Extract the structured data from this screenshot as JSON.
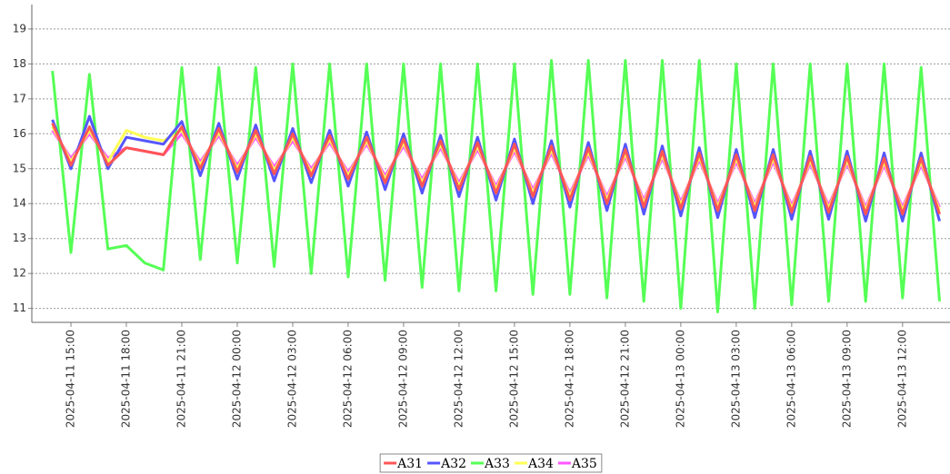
{
  "chart_data": {
    "type": "line",
    "x": [
      "2025-04-11 14:00",
      "2025-04-11 15:00",
      "2025-04-11 16:00",
      "2025-04-11 17:00",
      "2025-04-11 18:00",
      "2025-04-11 19:00",
      "2025-04-11 20:00",
      "2025-04-11 21:00",
      "2025-04-11 22:00",
      "2025-04-11 23:00",
      "2025-04-12 00:00",
      "2025-04-12 01:00",
      "2025-04-12 02:00",
      "2025-04-12 03:00",
      "2025-04-12 04:00",
      "2025-04-12 05:00",
      "2025-04-12 06:00",
      "2025-04-12 07:00",
      "2025-04-12 08:00",
      "2025-04-12 09:00",
      "2025-04-12 10:00",
      "2025-04-12 11:00",
      "2025-04-12 12:00",
      "2025-04-12 13:00",
      "2025-04-12 14:00",
      "2025-04-12 15:00",
      "2025-04-12 16:00",
      "2025-04-12 17:00",
      "2025-04-12 18:00",
      "2025-04-12 19:00",
      "2025-04-12 20:00",
      "2025-04-12 21:00",
      "2025-04-12 22:00",
      "2025-04-12 23:00",
      "2025-04-13 00:00",
      "2025-04-13 01:00",
      "2025-04-13 02:00",
      "2025-04-13 03:00",
      "2025-04-13 04:00",
      "2025-04-13 05:00",
      "2025-04-13 06:00",
      "2025-04-13 07:00",
      "2025-04-13 08:00",
      "2025-04-13 09:00",
      "2025-04-13 10:00",
      "2025-04-13 11:00",
      "2025-04-13 12:00",
      "2025-04-13 13:00",
      "2025-04-13 14:00"
    ],
    "series": [
      {
        "name": "A31",
        "color": "#ff5555",
        "values": [
          16.3,
          15.1,
          16.2,
          15.1,
          15.6,
          15.5,
          15.4,
          16.2,
          15.0,
          16.15,
          14.9,
          16.1,
          14.85,
          16.0,
          14.8,
          15.95,
          14.7,
          15.9,
          14.6,
          15.85,
          14.5,
          15.8,
          14.4,
          15.75,
          14.3,
          15.7,
          14.2,
          15.65,
          14.1,
          15.6,
          14.0,
          15.55,
          13.9,
          15.5,
          13.85,
          15.45,
          13.8,
          15.4,
          13.8,
          15.4,
          13.75,
          15.35,
          13.75,
          15.35,
          13.7,
          15.3,
          13.7,
          15.3,
          13.7
        ]
      },
      {
        "name": "A32",
        "color": "#5555ff",
        "values": [
          16.4,
          15.0,
          16.5,
          15.0,
          15.9,
          15.8,
          15.7,
          16.35,
          14.8,
          16.3,
          14.7,
          16.25,
          14.65,
          16.15,
          14.6,
          16.1,
          14.5,
          16.05,
          14.4,
          16.0,
          14.3,
          15.95,
          14.2,
          15.9,
          14.1,
          15.85,
          14.0,
          15.8,
          13.9,
          15.75,
          13.8,
          15.7,
          13.7,
          15.65,
          13.65,
          15.6,
          13.6,
          15.55,
          13.6,
          15.55,
          13.55,
          15.5,
          13.55,
          15.5,
          13.5,
          15.45,
          13.5,
          15.45,
          13.5
        ]
      },
      {
        "name": "A33",
        "color": "#55ff55",
        "values": [
          17.8,
          12.6,
          17.7,
          12.7,
          12.8,
          12.3,
          12.1,
          17.9,
          12.4,
          17.9,
          12.3,
          17.9,
          12.2,
          18.0,
          12.0,
          18.0,
          11.9,
          18.0,
          11.8,
          18.0,
          11.6,
          18.0,
          11.5,
          18.0,
          11.5,
          18.0,
          11.4,
          18.1,
          11.4,
          18.1,
          11.3,
          18.1,
          11.2,
          18.1,
          11.0,
          18.1,
          10.9,
          18.0,
          11.0,
          18.0,
          11.1,
          18.0,
          11.2,
          18.0,
          11.2,
          18.0,
          11.3,
          17.9,
          11.2
        ]
      },
      {
        "name": "A34",
        "color": "#ffff55",
        "values": [
          16.2,
          15.2,
          16.1,
          15.2,
          16.1,
          15.9,
          15.8,
          16.1,
          15.1,
          16.05,
          15.0,
          16.0,
          14.95,
          15.9,
          14.9,
          15.85,
          14.8,
          15.8,
          14.7,
          15.75,
          14.6,
          15.7,
          14.5,
          15.65,
          14.4,
          15.6,
          14.3,
          15.55,
          14.2,
          15.5,
          14.1,
          15.45,
          14.0,
          15.4,
          13.95,
          15.35,
          13.9,
          15.3,
          13.9,
          15.3,
          13.85,
          15.25,
          13.85,
          15.25,
          13.8,
          15.2,
          13.8,
          15.2,
          13.8
        ]
      },
      {
        "name": "A35",
        "color": "#ff55ff",
        "values": [
          16.1,
          15.3,
          16.0,
          15.3,
          15.6,
          15.5,
          15.4,
          16.0,
          15.2,
          15.95,
          15.1,
          15.9,
          15.05,
          15.8,
          15.0,
          15.75,
          14.9,
          15.7,
          14.8,
          15.65,
          14.7,
          15.6,
          14.6,
          15.55,
          14.5,
          15.5,
          14.4,
          15.45,
          14.3,
          15.4,
          14.2,
          15.35,
          14.1,
          15.3,
          14.05,
          15.25,
          14.0,
          15.2,
          14.0,
          15.2,
          13.95,
          15.15,
          13.95,
          15.15,
          13.9,
          15.1,
          13.9,
          15.1,
          13.9
        ]
      }
    ],
    "xlim": [
      "2025-04-11 12:53",
      "2025-04-13 14:34"
    ],
    "xticks": [
      "2025-04-11 15:00",
      "2025-04-11 18:00",
      "2025-04-11 21:00",
      "2025-04-12 00:00",
      "2025-04-12 03:00",
      "2025-04-12 06:00",
      "2025-04-12 09:00",
      "2025-04-12 12:00",
      "2025-04-12 15:00",
      "2025-04-12 18:00",
      "2025-04-12 21:00",
      "2025-04-13 00:00",
      "2025-04-13 03:00",
      "2025-04-13 06:00",
      "2025-04-13 09:00",
      "2025-04-13 12:00"
    ],
    "ylim": [
      10.6,
      19.7
    ],
    "yticks": [
      11,
      12,
      13,
      14,
      15,
      16,
      17,
      18,
      19
    ],
    "grid": true,
    "legend": "bottom"
  }
}
